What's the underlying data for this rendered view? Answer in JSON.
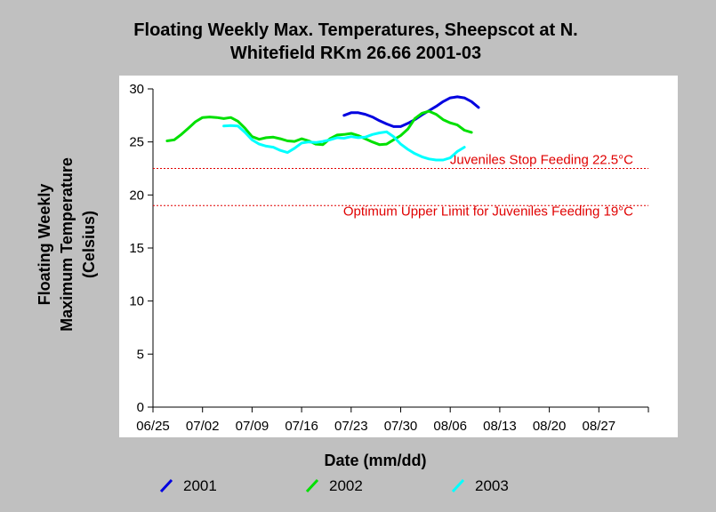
{
  "chart_data": {
    "type": "line",
    "title_lines": [
      "Floating Weekly Max. Temperatures, Sheepscot at N.",
      "Whitefield RKm 26.66 2001-03"
    ],
    "xlabel": "Date (mm/dd)",
    "ylabel_lines": [
      "Floating Weekly",
      "Maximum Temperature",
      "(Celsius)"
    ],
    "x_ticks": [
      "06/25",
      "07/02",
      "07/09",
      "07/16",
      "07/23",
      "07/30",
      "08/06",
      "08/13",
      "08/20",
      "08/27"
    ],
    "y_ticks": [
      "0",
      "5",
      "10",
      "15",
      "20",
      "25",
      "30"
    ],
    "ylim": [
      0,
      30
    ],
    "xlim": [
      "06/25",
      "09/03"
    ],
    "grid": false,
    "legend_position": "bottom",
    "reference_lines": [
      {
        "value": 22.5,
        "label": "Juveniles Stop Feeding 22.5°C",
        "color": "#e00000"
      },
      {
        "value": 19,
        "label": "Optimum Upper Limit for Juveniles Feeding 19°C",
        "color": "#e00000"
      }
    ],
    "series": [
      {
        "name": "2001",
        "color": "#0000e0",
        "points": [
          [
            "07/22",
            27.5
          ],
          [
            "07/23",
            27.75
          ],
          [
            "07/24",
            27.75
          ],
          [
            "07/25",
            27.6
          ],
          [
            "07/26",
            27.35
          ],
          [
            "07/27",
            27.0
          ],
          [
            "07/28",
            26.7
          ],
          [
            "07/29",
            26.45
          ],
          [
            "07/30",
            26.45
          ],
          [
            "07/31",
            26.75
          ],
          [
            "08/01",
            27.1
          ],
          [
            "08/02",
            27.55
          ],
          [
            "08/03",
            27.95
          ],
          [
            "08/04",
            28.35
          ],
          [
            "08/05",
            28.8
          ],
          [
            "08/06",
            29.15
          ],
          [
            "08/07",
            29.25
          ],
          [
            "08/08",
            29.15
          ],
          [
            "08/09",
            28.8
          ],
          [
            "08/10",
            28.25
          ]
        ]
      },
      {
        "name": "2002",
        "color": "#00e000",
        "points": [
          [
            "06/27",
            25.1
          ],
          [
            "06/28",
            25.2
          ],
          [
            "06/29",
            25.7
          ],
          [
            "06/30",
            26.3
          ],
          [
            "07/01",
            26.9
          ],
          [
            "07/02",
            27.3
          ],
          [
            "07/03",
            27.35
          ],
          [
            "07/04",
            27.3
          ],
          [
            "07/05",
            27.2
          ],
          [
            "07/06",
            27.3
          ],
          [
            "07/07",
            26.95
          ],
          [
            "07/08",
            26.3
          ],
          [
            "07/09",
            25.5
          ],
          [
            "07/10",
            25.25
          ],
          [
            "07/11",
            25.4
          ],
          [
            "07/12",
            25.45
          ],
          [
            "07/13",
            25.3
          ],
          [
            "07/14",
            25.1
          ],
          [
            "07/15",
            25.05
          ],
          [
            "07/16",
            25.3
          ],
          [
            "07/17",
            25.1
          ],
          [
            "07/18",
            24.8
          ],
          [
            "07/19",
            24.75
          ],
          [
            "07/20",
            25.3
          ],
          [
            "07/21",
            25.65
          ],
          [
            "07/22",
            25.7
          ],
          [
            "07/23",
            25.8
          ],
          [
            "07/24",
            25.6
          ],
          [
            "07/25",
            25.3
          ],
          [
            "07/26",
            25.0
          ],
          [
            "07/27",
            24.75
          ],
          [
            "07/28",
            24.8
          ],
          [
            "07/29",
            25.2
          ],
          [
            "07/30",
            25.6
          ],
          [
            "07/31",
            26.2
          ],
          [
            "08/01",
            27.2
          ],
          [
            "08/02",
            27.7
          ],
          [
            "08/03",
            27.9
          ],
          [
            "08/04",
            27.6
          ],
          [
            "08/05",
            27.1
          ],
          [
            "08/06",
            26.8
          ],
          [
            "08/07",
            26.6
          ],
          [
            "08/08",
            26.1
          ],
          [
            "08/09",
            25.9
          ]
        ]
      },
      {
        "name": "2003",
        "color": "#00ffff",
        "points": [
          [
            "07/05",
            26.5
          ],
          [
            "07/06",
            26.55
          ],
          [
            "07/07",
            26.5
          ],
          [
            "07/08",
            25.9
          ],
          [
            "07/09",
            25.2
          ],
          [
            "07/10",
            24.8
          ],
          [
            "07/11",
            24.6
          ],
          [
            "07/12",
            24.5
          ],
          [
            "07/13",
            24.2
          ],
          [
            "07/14",
            24.0
          ],
          [
            "07/15",
            24.4
          ],
          [
            "07/16",
            24.9
          ],
          [
            "07/17",
            25.0
          ],
          [
            "07/18",
            24.95
          ],
          [
            "07/19",
            25.05
          ],
          [
            "07/20",
            25.2
          ],
          [
            "07/21",
            25.4
          ],
          [
            "07/22",
            25.35
          ],
          [
            "07/23",
            25.5
          ],
          [
            "07/24",
            25.4
          ],
          [
            "07/25",
            25.45
          ],
          [
            "07/26",
            25.7
          ],
          [
            "07/27",
            25.85
          ],
          [
            "07/28",
            25.95
          ],
          [
            "07/29",
            25.5
          ],
          [
            "07/30",
            24.8
          ],
          [
            "07/31",
            24.3
          ],
          [
            "08/01",
            23.9
          ],
          [
            "08/02",
            23.6
          ],
          [
            "08/03",
            23.4
          ],
          [
            "08/04",
            23.3
          ],
          [
            "08/05",
            23.3
          ],
          [
            "08/06",
            23.5
          ],
          [
            "08/07",
            24.1
          ],
          [
            "08/08",
            24.5
          ]
        ]
      }
    ]
  }
}
